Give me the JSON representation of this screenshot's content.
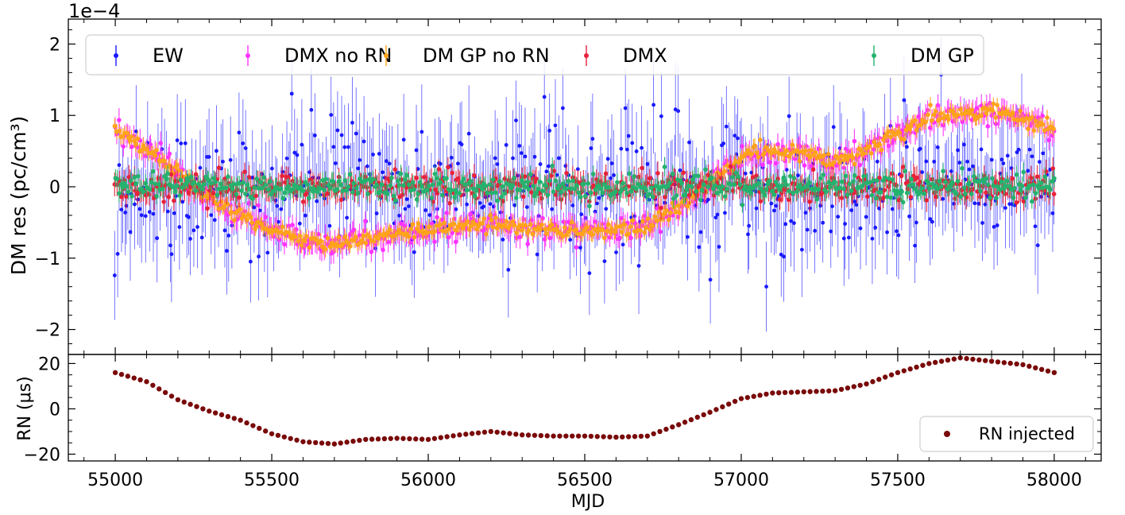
{
  "chart_data": [
    {
      "type": "scatter",
      "panel": "top",
      "offset_text": "1e−4",
      "xlabel": "",
      "ylabel": "DM res (pc/cm³)",
      "xlim": [
        54850,
        58150
      ],
      "ylim": [
        -2.35,
        2.35
      ],
      "y_scale_factor": 0.0001,
      "y_tick_values": [
        -2,
        -1,
        0,
        1,
        2
      ],
      "y_tick_labels": [
        "−2",
        "−1",
        "0",
        "1",
        "2"
      ],
      "legend_position": "top",
      "errorbars": true,
      "mjd_range": [
        55000,
        58000
      ],
      "n_points_per_series": 500,
      "series": [
        {
          "name": "EW",
          "color": "#1a1aff",
          "marker": "circle",
          "trend_mjd": [
            55000,
            58000
          ],
          "trend_value": [
            0,
            0
          ],
          "scatter_sd": 0.45,
          "typical_error": 0.6
        },
        {
          "name": "DMX no RN",
          "color": "#ff33ff",
          "marker": "circle",
          "trend_mjd": [
            55000,
            55100,
            55200,
            55300,
            55400,
            55500,
            55600,
            55700,
            55800,
            55900,
            56000,
            56100,
            56200,
            56300,
            56400,
            56500,
            56600,
            56700,
            56800,
            56900,
            57000,
            57100,
            57200,
            57300,
            57400,
            57500,
            57600,
            57700,
            57800,
            57900,
            58000
          ],
          "trend_value": [
            0.8,
            0.55,
            0.2,
            -0.15,
            -0.4,
            -0.6,
            -0.75,
            -0.8,
            -0.72,
            -0.65,
            -0.62,
            -0.55,
            -0.52,
            -0.58,
            -0.6,
            -0.62,
            -0.62,
            -0.55,
            -0.3,
            0.05,
            0.4,
            0.5,
            0.45,
            0.35,
            0.5,
            0.75,
            0.95,
            1.05,
            1.05,
            0.95,
            0.8
          ],
          "scatter_sd": 0.08,
          "typical_error": 0.15
        },
        {
          "name": "DM GP no RN",
          "color": "#ffa31a",
          "marker": "circle",
          "trend_mjd": [
            55000,
            55100,
            55200,
            55300,
            55400,
            55500,
            55600,
            55700,
            55800,
            55900,
            56000,
            56100,
            56200,
            56300,
            56400,
            56500,
            56600,
            56700,
            56800,
            56900,
            57000,
            57100,
            57200,
            57300,
            57400,
            57500,
            57600,
            57700,
            57800,
            57900,
            58000
          ],
          "trend_value": [
            0.8,
            0.55,
            0.2,
            -0.15,
            -0.4,
            -0.6,
            -0.75,
            -0.8,
            -0.72,
            -0.65,
            -0.62,
            -0.55,
            -0.52,
            -0.58,
            -0.6,
            -0.62,
            -0.62,
            -0.55,
            -0.3,
            0.05,
            0.4,
            0.5,
            0.45,
            0.35,
            0.5,
            0.75,
            0.95,
            1.05,
            1.05,
            0.95,
            0.8
          ],
          "scatter_sd": 0.05,
          "typical_error": 0.1
        },
        {
          "name": "DMX",
          "color": "#e8223a",
          "marker": "circle",
          "trend_mjd": [
            55000,
            58000
          ],
          "trend_value": [
            0,
            0
          ],
          "scatter_sd": 0.1,
          "typical_error": 0.15
        },
        {
          "name": "DM GP",
          "color": "#24b36e",
          "marker": "circle",
          "trend_mjd": [
            55000,
            58000
          ],
          "trend_value": [
            0,
            0
          ],
          "scatter_sd": 0.09,
          "typical_error": 0.12
        }
      ]
    },
    {
      "type": "scatter",
      "panel": "bottom",
      "xlabel": "MJD",
      "ylabel": "RN (μs)",
      "xlim": [
        54850,
        58150
      ],
      "ylim": [
        -23,
        24
      ],
      "x_tick_values": [
        55000,
        55500,
        56000,
        56500,
        57000,
        57500,
        58000
      ],
      "x_tick_labels": [
        "55000",
        "55500",
        "56000",
        "56500",
        "57000",
        "57500",
        "58000"
      ],
      "y_tick_values": [
        -20,
        0,
        20
      ],
      "y_tick_labels": [
        "−20",
        "0",
        "20"
      ],
      "legend_position": "bottom-right",
      "series": [
        {
          "name": "RN injected",
          "color": "#7a0a0a",
          "marker": "circle",
          "x": [
            55000,
            55100,
            55200,
            55300,
            55400,
            55500,
            55600,
            55700,
            55800,
            55900,
            56000,
            56100,
            56200,
            56300,
            56400,
            56500,
            56600,
            56700,
            56800,
            56900,
            57000,
            57100,
            57200,
            57300,
            57400,
            57500,
            57600,
            57700,
            57800,
            57900,
            58000
          ],
          "y": [
            16,
            12,
            4,
            -1,
            -5,
            -11,
            -14.5,
            -15.5,
            -13.5,
            -13,
            -13.5,
            -11.5,
            -10,
            -11.5,
            -12,
            -12,
            -12.5,
            -12,
            -7,
            -1.5,
            4.5,
            7,
            7.5,
            8,
            11,
            16,
            20,
            22.5,
            21,
            19.5,
            16
          ]
        }
      ]
    }
  ]
}
